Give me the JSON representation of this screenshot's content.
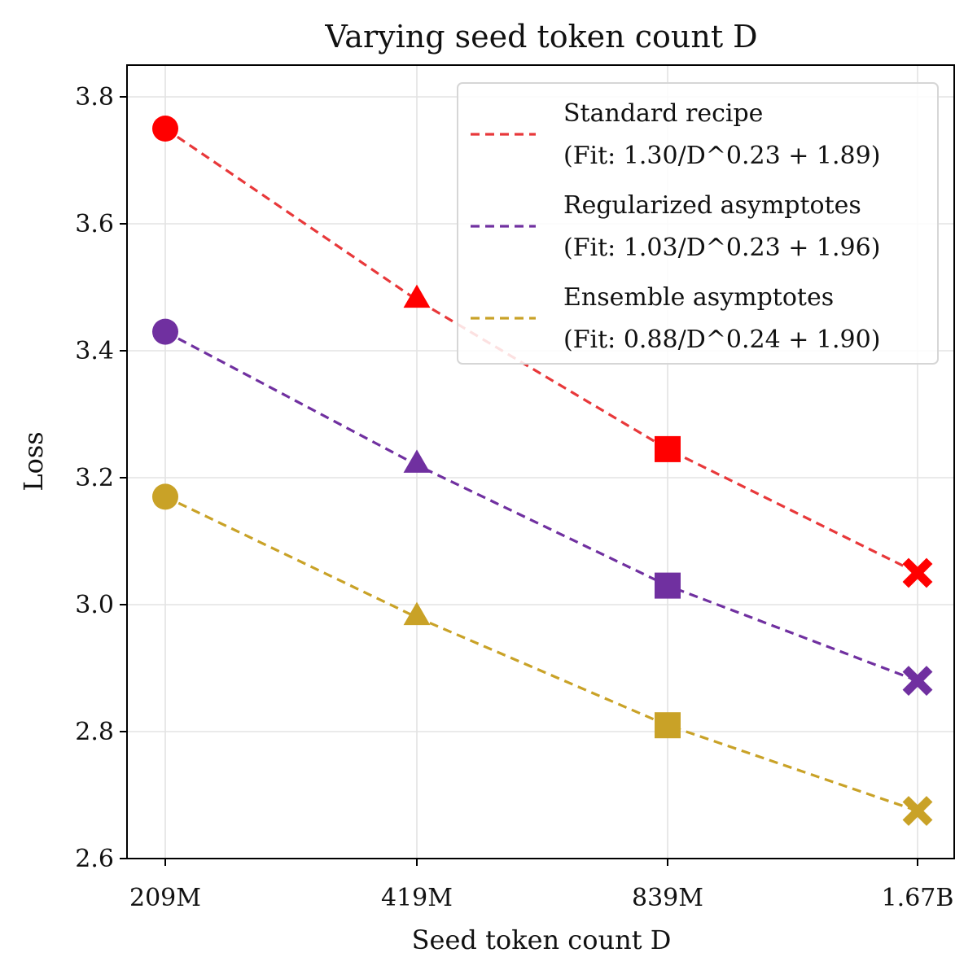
{
  "chart_data": {
    "type": "line",
    "title": "Varying seed token count D",
    "xlabel": "Seed token count D",
    "ylabel": "Loss",
    "categories": [
      "209M",
      "419M",
      "839M",
      "1.67B"
    ],
    "ylim": [
      2.6,
      3.85
    ],
    "yticks": [
      "2.6",
      "2.8",
      "3.0",
      "3.2",
      "3.4",
      "3.6",
      "3.8"
    ],
    "grid": true,
    "legend_position": "top-right",
    "markers": [
      "circle",
      "triangle",
      "square",
      "x"
    ],
    "series": [
      {
        "name": "Standard recipe",
        "fit": "(Fit: 1.30/D^0.23 + 1.89)",
        "line_color": "#e8383a",
        "marker_color": "#ff0000",
        "values": [
          3.75,
          3.48,
          3.245,
          3.05
        ]
      },
      {
        "name": "Regularized asymptotes",
        "fit": "(Fit: 1.03/D^0.23 + 1.96)",
        "line_color": "#7030a0",
        "marker_color": "#7030a0",
        "values": [
          3.43,
          3.22,
          3.03,
          2.88
        ]
      },
      {
        "name": "Ensemble asymptotes",
        "fit": "(Fit: 0.88/D^0.24 + 1.90)",
        "line_color": "#c9a227",
        "marker_color": "#c9a227",
        "values": [
          3.17,
          2.98,
          2.81,
          2.675
        ]
      }
    ]
  }
}
